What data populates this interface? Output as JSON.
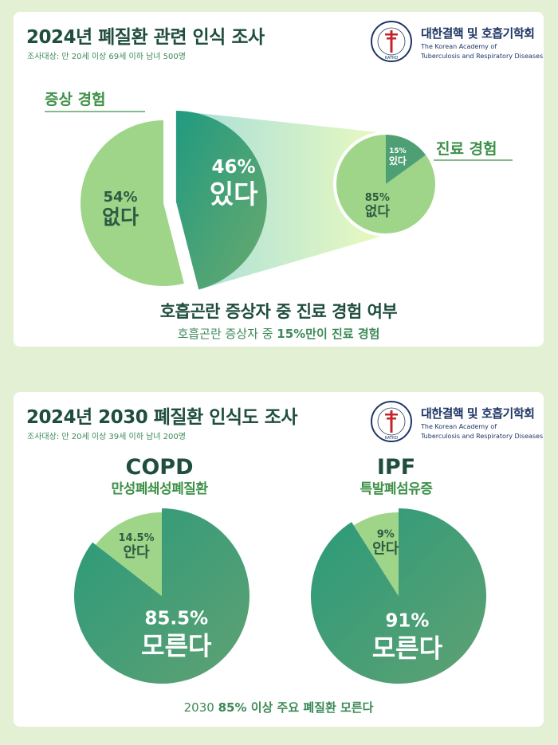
{
  "logo": {
    "name_ko": "대한결핵 및 호흡기학회",
    "name_en_1": "The Korean Academy of",
    "name_en_2": "Tuberculosis and Respiratory Diseases",
    "seal_ring_text": "대한결핵및호흡기학회",
    "seal_bottom_text": "KATRD"
  },
  "colors": {
    "light_green": "#9fd589",
    "mid_green": "#5aa877",
    "dark_teal": "#2a9a7a",
    "title_green": "#1f4d3f",
    "accent_green": "#3d9148"
  },
  "section1": {
    "title": "2024년 폐질환 관련 인식 조사",
    "subtitle": "조사대상: 만 20세 이상 69세 이하 남녀 500명",
    "label_symptom": "증상 경험",
    "label_treatment": "진료 경험",
    "bottom_title": "호흡곤란 증상자 중 진료 경험 여부",
    "bottom_sub_pre": "호흡곤란 증상자 중 ",
    "bottom_sub_bold": "15%만이 진료 경험"
  },
  "section2": {
    "title": "2024년 2030 폐질환 인식도 조사",
    "subtitle": "조사대상: 만 20세 이상 39세 이하 남녀 200명",
    "copd_en": "COPD",
    "copd_ko": "만성폐쇄성폐질환",
    "ipf_en": "IPF",
    "ipf_ko": "특발폐섬유증",
    "footer_pre": "2030 ",
    "footer_bold": "85% 이상 주요 폐질환 모른다"
  },
  "chart_data": [
    {
      "type": "pie",
      "title": "증상 경험",
      "categories": [
        "있다",
        "없다"
      ],
      "values": [
        46,
        54
      ],
      "labels": [
        "46%",
        "54%"
      ]
    },
    {
      "type": "pie",
      "title": "진료 경험",
      "categories": [
        "있다",
        "없다"
      ],
      "values": [
        15,
        85
      ],
      "labels": [
        "15%",
        "85%"
      ]
    },
    {
      "type": "pie",
      "title": "COPD",
      "categories": [
        "안다",
        "모른다"
      ],
      "values": [
        14.5,
        85.5
      ],
      "labels": [
        "14.5%",
        "85.5%"
      ]
    },
    {
      "type": "pie",
      "title": "IPF",
      "categories": [
        "안다",
        "모른다"
      ],
      "values": [
        9,
        91
      ],
      "labels": [
        "9%",
        "91%"
      ]
    }
  ]
}
